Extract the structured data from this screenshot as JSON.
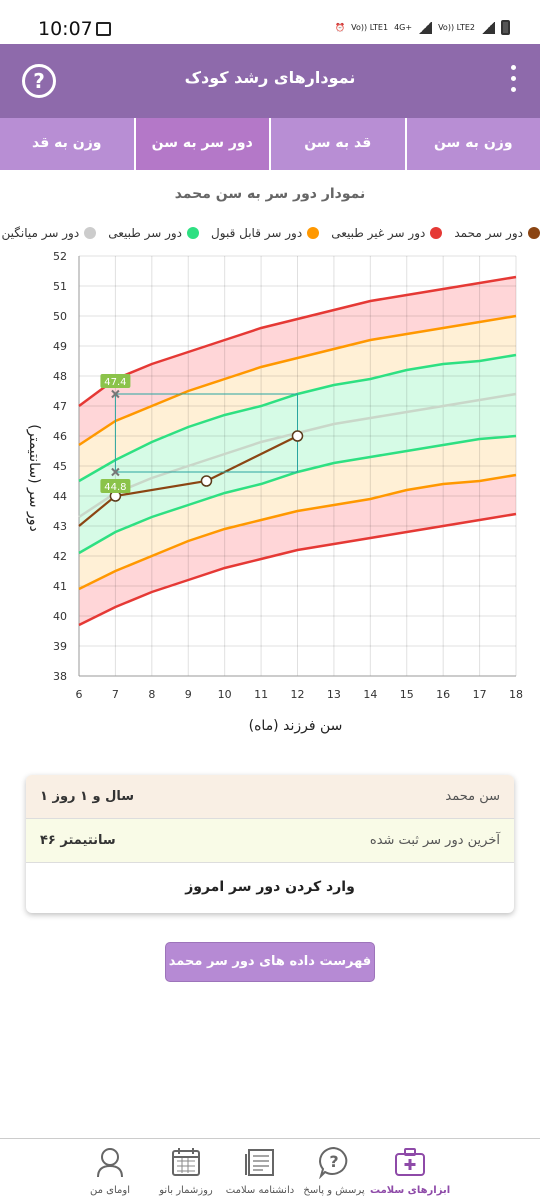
{
  "status": {
    "time": "10:07",
    "sim1": "Vo)) LTE1",
    "net": "4G+",
    "sim2": "Vo)) LTE2"
  },
  "header": {
    "title": "نمودارهای رشد کودک",
    "help_symbol": "?"
  },
  "tabs": [
    {
      "label": "وزن به سن",
      "active": false
    },
    {
      "label": "قد به سن",
      "active": false
    },
    {
      "label": "دور سر به سن",
      "active": true
    },
    {
      "label": "وزن به قد",
      "active": false
    }
  ],
  "chart": {
    "title": "نمودار دور سر به سن محمد"
  },
  "legend": [
    {
      "label": "دور سر محمد",
      "color": "#8b4513"
    },
    {
      "label": "دور سر غیر طبیعی",
      "color": "#e53935"
    },
    {
      "label": "دور سر قابل قبول",
      "color": "#ff9800"
    },
    {
      "label": "دور سر طبیعی",
      "color": "#2ee082"
    },
    {
      "label": "دور سر میانگین",
      "color": "#cccccc"
    }
  ],
  "chart_data": {
    "type": "line",
    "xlabel": "سن فرزند (ماه)",
    "ylabel": "دور سر (سانتیمتر)",
    "xlim": [
      6,
      18
    ],
    "ylim": [
      38,
      52
    ],
    "x_ticks": [
      6,
      7,
      8,
      9,
      10,
      11,
      12,
      13,
      14,
      15,
      16,
      17,
      18
    ],
    "y_ticks": [
      38,
      39,
      40,
      41,
      42,
      43,
      44,
      45,
      46,
      47,
      48,
      49,
      50,
      51,
      52
    ],
    "grid": true,
    "series": [
      {
        "name": "دور سر غیر طبیعی",
        "color": "#e53935",
        "x": [
          6,
          7,
          8,
          9,
          10,
          11,
          12,
          13,
          14,
          15,
          16,
          17,
          18
        ],
        "y": [
          47.0,
          47.9,
          48.4,
          48.8,
          49.2,
          49.6,
          49.9,
          50.2,
          50.5,
          50.7,
          50.9,
          51.1,
          51.3
        ]
      },
      {
        "name": "دور سر قابل قبول",
        "color": "#ff9800",
        "x": [
          6,
          7,
          8,
          9,
          10,
          11,
          12,
          13,
          14,
          15,
          16,
          17,
          18
        ],
        "y": [
          45.7,
          46.5,
          47.0,
          47.5,
          47.9,
          48.3,
          48.6,
          48.9,
          49.2,
          49.4,
          49.6,
          49.8,
          50.0
        ]
      },
      {
        "name": "دور سر طبیعی",
        "color": "#2ee082",
        "x": [
          6,
          7,
          8,
          9,
          10,
          11,
          12,
          13,
          14,
          15,
          16,
          17,
          18
        ],
        "y": [
          44.5,
          45.2,
          45.8,
          46.3,
          46.7,
          47.0,
          47.4,
          47.7,
          47.9,
          48.2,
          48.4,
          48.5,
          48.7
        ]
      },
      {
        "name": "دور سر میانگین",
        "color": "#c9d7c9",
        "x": [
          6,
          7,
          8,
          9,
          10,
          11,
          12,
          13,
          14,
          15,
          16,
          17,
          18
        ],
        "y": [
          43.3,
          44.1,
          44.6,
          45.0,
          45.4,
          45.8,
          46.1,
          46.4,
          46.6,
          46.8,
          47.0,
          47.2,
          47.4
        ]
      },
      {
        "name": "دور سر طبیعی",
        "color": "#2ee082",
        "x": [
          6,
          7,
          8,
          9,
          10,
          11,
          12,
          13,
          14,
          15,
          16,
          17,
          18
        ],
        "y": [
          42.1,
          42.8,
          43.3,
          43.7,
          44.1,
          44.4,
          44.8,
          45.1,
          45.3,
          45.5,
          45.7,
          45.9,
          46.0
        ]
      },
      {
        "name": "دور سر قابل قبول",
        "color": "#ff9800",
        "x": [
          6,
          7,
          8,
          9,
          10,
          11,
          12,
          13,
          14,
          15,
          16,
          17,
          18
        ],
        "y": [
          40.9,
          41.5,
          42.0,
          42.5,
          42.9,
          43.2,
          43.5,
          43.7,
          43.9,
          44.2,
          44.4,
          44.5,
          44.7
        ]
      },
      {
        "name": "دور سر غیر طبیعی",
        "color": "#e53935",
        "x": [
          6,
          7,
          8,
          9,
          10,
          11,
          12,
          13,
          14,
          15,
          16,
          17,
          18
        ],
        "y": [
          39.7,
          40.3,
          40.8,
          41.2,
          41.6,
          41.9,
          42.2,
          42.4,
          42.6,
          42.8,
          43.0,
          43.2,
          43.4
        ]
      },
      {
        "name": "دور سر محمد",
        "color": "#8b4513",
        "x": [
          6,
          7,
          9.5,
          12
        ],
        "y": [
          43.0,
          44.0,
          44.5,
          46.0
        ]
      }
    ],
    "markers": [
      {
        "label": "47.4",
        "x": 7,
        "y": 47.4
      },
      {
        "label": "44.8",
        "x": 7,
        "y": 44.8
      }
    ],
    "reference_box": {
      "x": [
        7,
        12
      ],
      "y": [
        44.8,
        47.4
      ]
    }
  },
  "summary": {
    "age_label": "سن محمد",
    "age_value": "۱ سال و ۱ روز",
    "last_label": "آخرین دور سر ثبت شده",
    "last_value": "۴۶ سانتیمتر",
    "action_label": "وارد کردن دور سر امروز"
  },
  "list_button": "فهرست داده های دور سر محمد",
  "bottom_nav": [
    {
      "label": "اومای من",
      "icon": "user-icon"
    },
    {
      "label": "روزشمار بانو",
      "icon": "calendar-icon"
    },
    {
      "label": "دانشنامه سلامت",
      "icon": "book-icon"
    },
    {
      "label": "پرسش و پاسخ",
      "icon": "question-chat-icon"
    },
    {
      "label": "ابزارهای سلامت",
      "icon": "health-kit-icon",
      "active": true
    }
  ],
  "colors": {
    "app_bar": "#8e6aab",
    "tabs": "#b88ed4",
    "active_tab": "#b478c8",
    "band_red": "#ffd6d8",
    "band_orange": "#fff0d6",
    "band_green": "#d6fbe6"
  }
}
